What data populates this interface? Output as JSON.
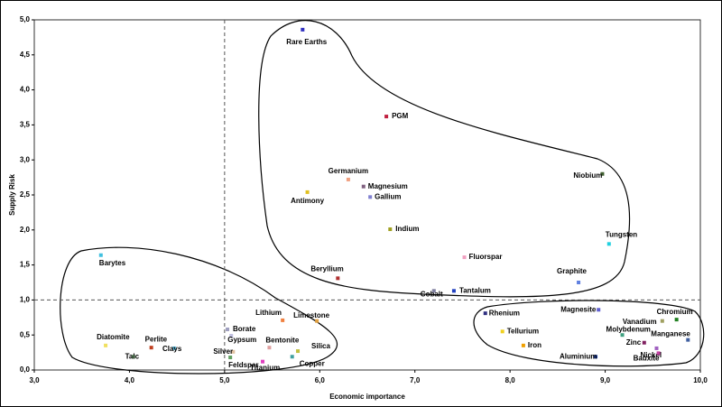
{
  "chart_data": {
    "type": "scatter",
    "x_label": "Economic importance",
    "y_label": "Supply Risk",
    "xlim": [
      3,
      10
    ],
    "ylim": [
      0,
      5
    ],
    "xticks": [
      {
        "value": 3,
        "label": "3,0"
      },
      {
        "value": 4,
        "label": "4,0"
      },
      {
        "value": 5,
        "label": "5,0"
      },
      {
        "value": 6,
        "label": "6,0"
      },
      {
        "value": 7,
        "label": "7,0"
      },
      {
        "value": 8,
        "label": "8,0"
      },
      {
        "value": 9,
        "label": "9,0"
      },
      {
        "value": 10,
        "label": "10,0"
      }
    ],
    "yticks": [
      {
        "value": 0,
        "label": "0,0"
      },
      {
        "value": 0.5,
        "label": "0,5"
      },
      {
        "value": 1,
        "label": "1,0"
      },
      {
        "value": 1.5,
        "label": "1,5"
      },
      {
        "value": 2,
        "label": "2,0"
      },
      {
        "value": 2.5,
        "label": "2,5"
      },
      {
        "value": 3,
        "label": "3,0"
      },
      {
        "value": 3.5,
        "label": "3,5"
      },
      {
        "value": 4,
        "label": "4,0"
      },
      {
        "value": 4.5,
        "label": "4,5"
      },
      {
        "value": 5,
        "label": "5,0"
      }
    ],
    "threshold_x": 5,
    "threshold_y": 1,
    "points": [
      {
        "name": "Rare Earths",
        "x": 5.82,
        "y": 4.86,
        "color": "#3030c0"
      },
      {
        "name": "PGM",
        "x": 6.7,
        "y": 3.62,
        "color": "#c02040"
      },
      {
        "name": "Niobium",
        "x": 8.97,
        "y": 2.8,
        "color": "#406030"
      },
      {
        "name": "Germanium",
        "x": 6.3,
        "y": 2.72,
        "color": "#f0a080"
      },
      {
        "name": "Magnesium",
        "x": 6.46,
        "y": 2.62,
        "color": "#806080"
      },
      {
        "name": "Gallium",
        "x": 6.53,
        "y": 2.47,
        "color": "#8080d0"
      },
      {
        "name": "Antimony",
        "x": 5.87,
        "y": 2.54,
        "color": "#e0c020"
      },
      {
        "name": "Indium",
        "x": 6.74,
        "y": 2.01,
        "color": "#a0a020"
      },
      {
        "name": "Tungsten",
        "x": 9.04,
        "y": 1.8,
        "color": "#20d0e0"
      },
      {
        "name": "Fluorspar",
        "x": 7.52,
        "y": 1.61,
        "color": "#f0a0c0"
      },
      {
        "name": "Beryllium",
        "x": 6.19,
        "y": 1.31,
        "color": "#b03030"
      },
      {
        "name": "Graphite",
        "x": 8.72,
        "y": 1.25,
        "color": "#6080e0"
      },
      {
        "name": "Cobalt",
        "x": 7.2,
        "y": 1.13,
        "color": "#8080a0"
      },
      {
        "name": "Tantalum",
        "x": 7.41,
        "y": 1.13,
        "color": "#2040c0"
      },
      {
        "name": "Barytes",
        "x": 3.7,
        "y": 1.64,
        "color": "#40c0e0"
      },
      {
        "name": "Rhenium",
        "x": 7.74,
        "y": 0.81,
        "color": "#303080"
      },
      {
        "name": "Magnesite",
        "x": 8.93,
        "y": 0.86,
        "color": "#6060d0"
      },
      {
        "name": "Chromium",
        "x": 9.75,
        "y": 0.72,
        "color": "#208020"
      },
      {
        "name": "Vanadium",
        "x": 9.6,
        "y": 0.7,
        "color": "#a0a060"
      },
      {
        "name": "Tellurium",
        "x": 7.92,
        "y": 0.55,
        "color": "#f0d020"
      },
      {
        "name": "Molybdenum",
        "x": 9.18,
        "y": 0.5,
        "color": "#40a080"
      },
      {
        "name": "Manganese",
        "x": 9.87,
        "y": 0.43,
        "color": "#4060a0"
      },
      {
        "name": "Iron",
        "x": 8.14,
        "y": 0.35,
        "color": "#f0a000"
      },
      {
        "name": "Zinc",
        "x": 9.41,
        "y": 0.39,
        "color": "#802060"
      },
      {
        "name": "Nickel",
        "x": 9.54,
        "y": 0.31,
        "color": "#a060c0"
      },
      {
        "name": "Aluminium",
        "x": 8.9,
        "y": 0.19,
        "color": "#2040a0"
      },
      {
        "name": "Bauxite",
        "x": 9.56,
        "y": 0.24,
        "color": "#c040a0"
      },
      {
        "name": "Lithium",
        "x": 5.61,
        "y": 0.71,
        "color": "#f08040"
      },
      {
        "name": "Limestone",
        "x": 5.97,
        "y": 0.7,
        "color": "#e0a040"
      },
      {
        "name": "Bentonite",
        "x": 5.47,
        "y": 0.32,
        "color": "#e0a0a0"
      },
      {
        "name": "Borate",
        "x": 5.03,
        "y": 0.58,
        "color": "#a0a0c0"
      },
      {
        "name": "Gypsum",
        "x": 5.07,
        "y": 0.49,
        "color": "#c0c0e0"
      },
      {
        "name": "Silver",
        "x": 5.09,
        "y": 0.26,
        "color": "#e0c0a0"
      },
      {
        "name": "Feldspar",
        "x": 5.06,
        "y": 0.18,
        "color": "#60a060"
      },
      {
        "name": "Titanium",
        "x": 5.4,
        "y": 0.12,
        "color": "#e040c0"
      },
      {
        "name": "Silica",
        "x": 5.77,
        "y": 0.27,
        "color": "#c0c040"
      },
      {
        "name": "Copper",
        "x": 5.71,
        "y": 0.19,
        "color": "#40a0a0"
      },
      {
        "name": "Diatomite",
        "x": 3.75,
        "y": 0.35,
        "color": "#f0e060"
      },
      {
        "name": "Perlite",
        "x": 4.23,
        "y": 0.32,
        "color": "#c04020"
      },
      {
        "name": "Talc",
        "x": 4.04,
        "y": 0.19,
        "color": "#80c080"
      },
      {
        "name": "Clays",
        "x": 4.47,
        "y": 0.31,
        "color": "#60c0e0"
      }
    ]
  }
}
